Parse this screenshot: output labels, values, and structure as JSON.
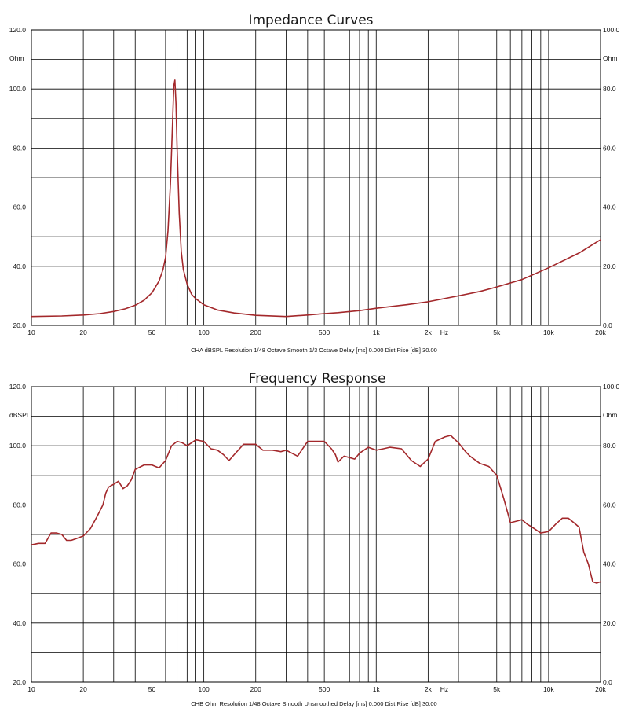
{
  "colors": {
    "curve": "#a3282b",
    "grid": "#000000",
    "background": "#ffffff"
  },
  "x_ticks": [
    {
      "v": 10,
      "label": "10"
    },
    {
      "v": 20,
      "label": "20"
    },
    {
      "v": 50,
      "label": "50"
    },
    {
      "v": 100,
      "label": "100"
    },
    {
      "v": 200,
      "label": "200"
    },
    {
      "v": 500,
      "label": "500"
    },
    {
      "v": 1000,
      "label": "1k"
    },
    {
      "v": 2000,
      "label": "2k"
    },
    {
      "v": 5000,
      "label": "5k"
    },
    {
      "v": 10000,
      "label": "10k"
    },
    {
      "v": 20000,
      "label": "20k"
    }
  ],
  "x_unit_label": "Hz",
  "chart_data": [
    {
      "type": "line",
      "title": "Impedance Curves",
      "x_scale": "log",
      "xlim": [
        10,
        20000
      ],
      "ylim": [
        20,
        120
      ],
      "right_ylim": [
        0,
        100
      ],
      "left_unit": "Ohm",
      "right_unit": "Ohm",
      "grid": true,
      "left_ticks": [
        "120.0",
        "100.0",
        "80.0",
        "60.0",
        "40.0",
        "20.0"
      ],
      "right_ticks": [
        "100.0",
        "80.0",
        "60.0",
        "40.0",
        "20.0",
        "0.0"
      ],
      "footer": "CHA dBSPL Resolution 1/48 Octave Smooth 1/3 Octave Delay [ms] 0.000 Dist Rise [dB] 30.00",
      "series": [
        {
          "x": [
            10,
            15,
            20,
            25,
            30,
            35,
            40,
            45,
            50,
            55,
            58,
            60,
            62,
            64,
            66,
            67,
            68,
            69,
            70,
            72,
            74,
            76,
            80,
            85,
            90,
            100,
            120,
            150,
            200,
            300,
            400,
            500,
            600,
            800,
            1000,
            1500,
            2000,
            3000,
            4000,
            5000,
            7000,
            10000,
            15000,
            20000
          ],
          "y": [
            23,
            23.2,
            23.5,
            24,
            24.7,
            25.6,
            26.8,
            28.5,
            31,
            35,
            39,
            43,
            52,
            68,
            90,
            101,
            103,
            95,
            80,
            58,
            45,
            39,
            34,
            30.5,
            29,
            27,
            25.2,
            24.2,
            23.4,
            23,
            23.5,
            24,
            24.3,
            25,
            25.8,
            27,
            28,
            30,
            31.5,
            33,
            35.5,
            39.5,
            44.5,
            49
          ]
        }
      ]
    },
    {
      "type": "line",
      "title": "Frequency Response",
      "x_scale": "log",
      "xlim": [
        10,
        20000
      ],
      "ylim": [
        20,
        120
      ],
      "right_ylim": [
        0,
        100
      ],
      "left_unit": "dBSPL",
      "right_unit": "Ohm",
      "grid": true,
      "left_ticks": [
        "120.0",
        "100.0",
        "80.0",
        "60.0",
        "40.0",
        "20.0"
      ],
      "right_ticks": [
        "100.0",
        "80.0",
        "60.0",
        "40.0",
        "20.0",
        "0.0"
      ],
      "footer": "CHB Ohm Resolution 1/48 Octave Smooth Unsmoothed Delay [ms] 0.000 Dist Rise [dB] 30.00",
      "series": [
        {
          "x": [
            10,
            11,
            12,
            13,
            14,
            15,
            16,
            17,
            18,
            20,
            22,
            24,
            26,
            27,
            28,
            30,
            32,
            34,
            36,
            38,
            40,
            45,
            50,
            55,
            60,
            65,
            70,
            75,
            80,
            90,
            100,
            110,
            120,
            130,
            140,
            150,
            170,
            200,
            220,
            250,
            280,
            300,
            350,
            400,
            450,
            500,
            550,
            580,
            600,
            650,
            700,
            750,
            800,
            900,
            1000,
            1100,
            1200,
            1400,
            1600,
            1800,
            2000,
            2200,
            2500,
            2700,
            3000,
            3300,
            3500,
            4000,
            4500,
            5000,
            5500,
            6000,
            6500,
            7000,
            7500,
            8000,
            9000,
            10000,
            11000,
            12000,
            13000,
            14000,
            15000,
            16000,
            17000,
            18000,
            19000,
            20000
          ],
          "y": [
            66.5,
            67,
            67,
            70.5,
            70.5,
            70,
            68,
            68,
            68.5,
            69.5,
            72,
            76,
            80,
            84,
            86,
            87,
            88,
            85.5,
            86.5,
            88.5,
            92,
            93.5,
            93.5,
            92.5,
            95,
            100,
            101.5,
            101,
            100,
            102,
            101.5,
            99,
            98.5,
            97,
            95,
            97,
            100.5,
            100.5,
            98.5,
            98.5,
            98,
            98.5,
            96.5,
            101.5,
            101.5,
            101.5,
            99,
            97,
            94.5,
            96.5,
            96,
            95.5,
            97.5,
            99.5,
            98.5,
            99,
            99.5,
            99,
            95,
            93,
            95.5,
            101.5,
            103,
            103.5,
            101,
            98,
            96.5,
            94,
            93,
            90,
            82,
            74,
            74.5,
            75,
            73.5,
            72.5,
            70.5,
            71,
            73.5,
            75.5,
            75.5,
            74,
            72.5,
            64,
            60,
            54,
            53.5,
            54
          ]
        }
      ]
    }
  ]
}
